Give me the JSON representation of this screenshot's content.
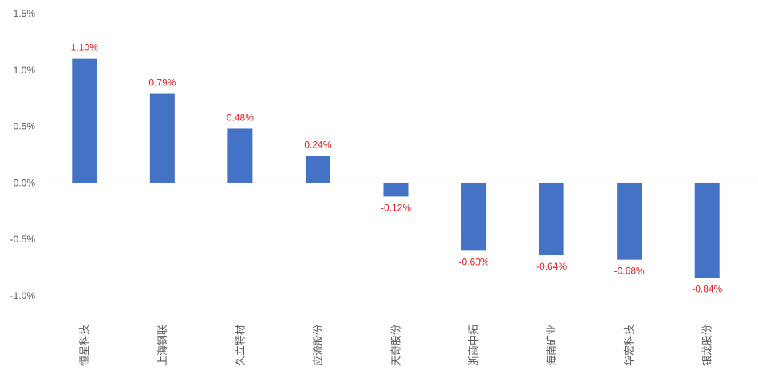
{
  "chart_data": {
    "type": "bar",
    "categories": [
      "恒星科技",
      "上海钢联",
      "久立特材",
      "应流股份",
      "天奇股份",
      "浙商中拓",
      "海南矿业",
      "华宏科技",
      "银龙股份"
    ],
    "values": [
      1.1,
      0.79,
      0.48,
      0.24,
      -0.12,
      -0.6,
      -0.64,
      -0.68,
      -0.84
    ],
    "data_labels": [
      "1.10%",
      "0.79%",
      "0.48%",
      "0.24%",
      "-0.12%",
      "-0.60%",
      "-0.64%",
      "-0.68%",
      "-0.84%"
    ],
    "y_ticks": [
      1.5,
      1.0,
      0.5,
      0.0,
      -0.5,
      -1.0
    ],
    "y_tick_labels": [
      "1.5%",
      "1.0%",
      "0.5%",
      "0.0%",
      "-0.5%",
      "-1.0%"
    ],
    "ylim": [
      -1.0,
      1.5
    ],
    "grid": false,
    "title": "",
    "xlabel": "",
    "ylabel": "",
    "colors": {
      "bar": "#4472C4",
      "data_label": "#E02020",
      "axis_text": "#595959",
      "axis_line": "#D9D9D9"
    }
  }
}
